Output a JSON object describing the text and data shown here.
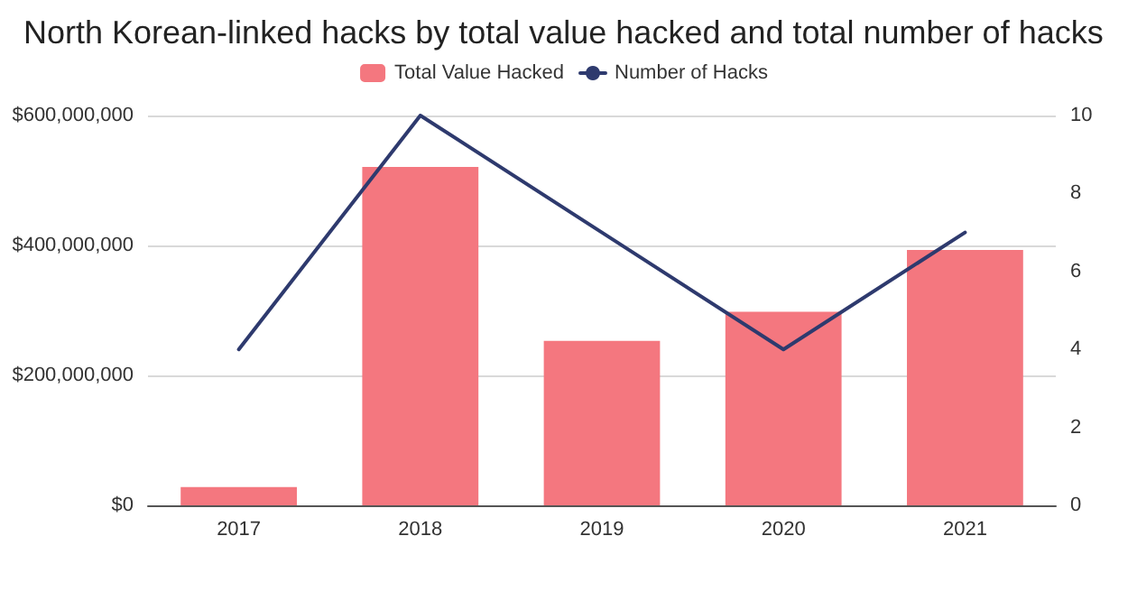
{
  "chart_data": {
    "type": "bar",
    "title": "North Korean-linked hacks by total value hacked and total number of hacks",
    "categories": [
      "2017",
      "2018",
      "2019",
      "2020",
      "2021"
    ],
    "series": [
      {
        "name": "Total Value Hacked",
        "color": "#f4777f",
        "values": [
          28000000,
          521000000,
          253000000,
          298000000,
          393000000
        ]
      },
      {
        "name": "Number of Hacks",
        "type": "line",
        "axis": "y2",
        "color": "#2e3a6e",
        "values": [
          4,
          10,
          7,
          4,
          7
        ]
      }
    ],
    "ylim": [
      0,
      600000000
    ],
    "yticks": [
      {
        "value": 0,
        "label": "$0"
      },
      {
        "value": 200000000,
        "label": "$200,000,000"
      },
      {
        "value": 400000000,
        "label": "$400,000,000"
      },
      {
        "value": 600000000,
        "label": "$600,000,000"
      }
    ],
    "y2lim": [
      0,
      10
    ],
    "y2ticks": [
      0,
      2,
      4,
      6,
      8,
      10
    ],
    "grid": "y",
    "legend": "top",
    "marker": "none",
    "line_style": "solid"
  }
}
